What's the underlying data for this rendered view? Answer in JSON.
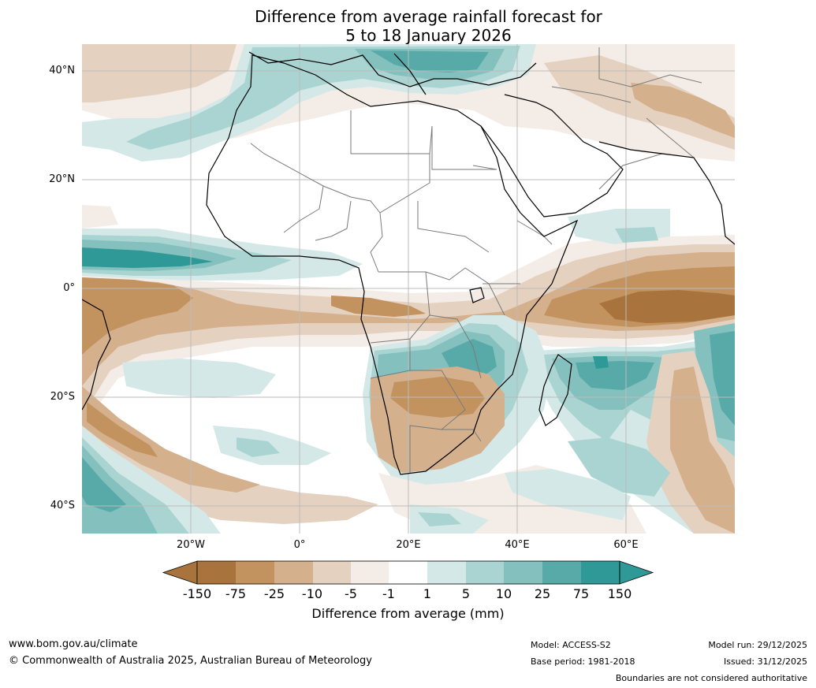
{
  "title": {
    "line1": "Difference from average rainfall forecast for",
    "line2": "5 to 18 January 2026"
  },
  "map": {
    "lat_labels": [
      "40°N",
      "20°N",
      "0°",
      "20°S",
      "40°S"
    ],
    "lon_labels": [
      "20°W",
      "0°",
      "20°E",
      "40°E",
      "60°E"
    ],
    "colors": {
      "dry_strong": "#a8733c",
      "dry_2": "#c2935f",
      "dry_3": "#d4b08c",
      "dry_4": "#e5d1bf",
      "dry_5": "#f4ece6",
      "neutral": "#ffffff",
      "wet_5": "#d4e9e7",
      "wet_4": "#aad4d2",
      "wet_3": "#83c0be",
      "wet_2": "#58aaa8",
      "wet_strong": "#2e9996",
      "coast": "#000000",
      "border": "#7a7a7a",
      "grid": "#bbbbbb"
    }
  },
  "colorbar": {
    "ticks": [
      "-150",
      "-75",
      "-25",
      "-10",
      "-5",
      "-1",
      "1",
      "5",
      "10",
      "25",
      "75",
      "150"
    ],
    "label": "Difference from average (mm)"
  },
  "footer": {
    "website": "www.bom.gov.au/climate",
    "copyright": "© Commonwealth of Australia 2025, Australian Bureau of Meteorology",
    "model": "Model: ACCESS-S2",
    "base_period": "Base period: 1981-2018",
    "model_run": "Model run: 29/12/2025",
    "issued": "Issued: 31/12/2025",
    "disclaimer": "Boundaries are not considered authoritative"
  }
}
